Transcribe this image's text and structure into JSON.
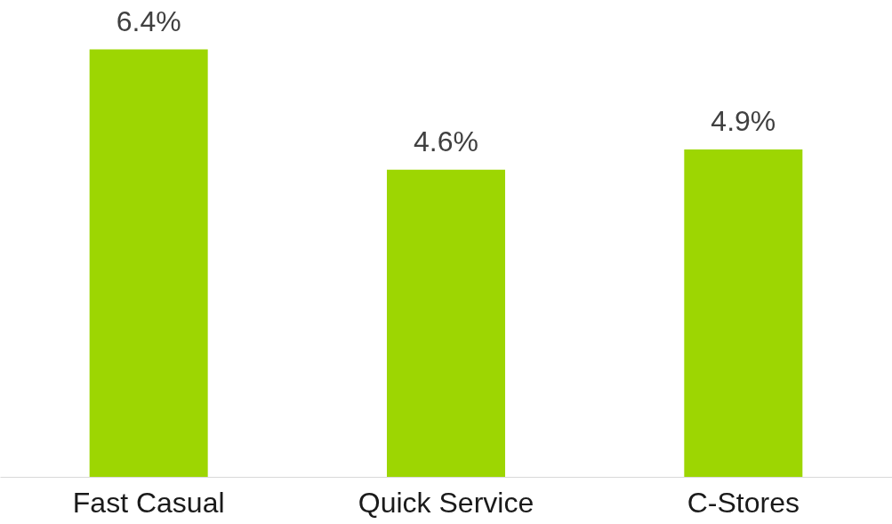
{
  "chart_data": {
    "type": "bar",
    "categories": [
      "Fast Casual",
      "Quick Service",
      "C-Stores"
    ],
    "values": [
      6.4,
      4.6,
      4.9
    ],
    "color": "#9dd602",
    "data_labels": true,
    "value_labels": [
      "6.4%",
      "4.6%",
      "4.9%"
    ]
  }
}
